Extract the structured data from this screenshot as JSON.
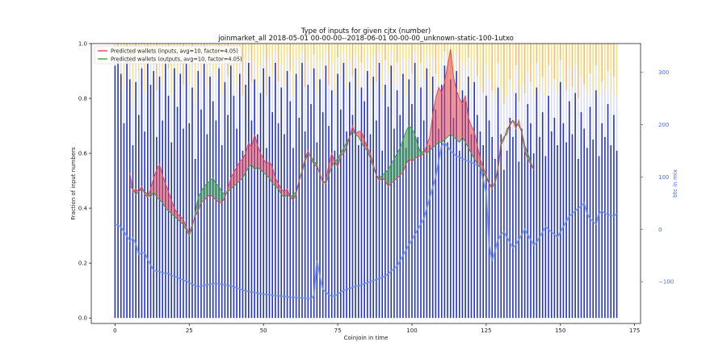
{
  "chart_data": {
    "type": "bar",
    "title_line1": "Type of inputs for given cjtx (number)",
    "title_line2": "joinmarket_all 2018-05-01 00-00-00--2018-06-01 00-00-00_unknown-static-100-1utxo",
    "xlabel": "Coinjoin in time",
    "ylabel": "Fraction of input numbers",
    "ylabel_right": "btc in mix",
    "xlim": [
      -8,
      177
    ],
    "ylim": [
      -0.02,
      1.0
    ],
    "ylim_right": [
      -180,
      355
    ],
    "x_ticks": [
      0,
      25,
      50,
      75,
      100,
      125,
      150,
      175
    ],
    "x_tick_labels": [
      "0",
      "25",
      "50",
      "75",
      "100",
      "125",
      "150",
      "175"
    ],
    "y_ticks": [
      0.0,
      0.2,
      0.4,
      0.6,
      0.8,
      1.0
    ],
    "y_tick_labels": [
      "0.0",
      "0.2",
      "0.4",
      "0.6",
      "0.8",
      "1.0"
    ],
    "y_ticks_right": [
      -100,
      0,
      100,
      200,
      300
    ],
    "y_tick_labels_right": [
      "−100",
      "0",
      "100",
      "200",
      "300"
    ],
    "legend_position": "top-left",
    "legend": [
      {
        "label": "Predicted wallets (inputs, avg=10, factor=4.05)",
        "color": "#e8474b"
      },
      {
        "label": "Predicted wallets (outputs, avg=10, factor=4.05)",
        "color": "#3d9f3d"
      }
    ],
    "colors": {
      "bar_blue": "#2233cc",
      "bar_light": "#d9dcf6",
      "bar_yellow": "#ffd23a",
      "bar_orange": "#f0a030",
      "inputs_line": "#e8474b",
      "outputs_line": "#3d9f3d",
      "fill_red": "#e8474b",
      "fill_green": "#3d9f3d",
      "btc_line": "#6f8ee8"
    },
    "bar_count": 170,
    "bars_blue_fraction": [
      0.92,
      0.94,
      0.89,
      0.71,
      0.95,
      0.87,
      0.63,
      0.86,
      0.74,
      0.91,
      0.68,
      0.93,
      0.85,
      0.9,
      0.66,
      0.88,
      0.72,
      0.94,
      0.81,
      0.64,
      0.91,
      0.77,
      0.89,
      0.69,
      0.93,
      0.71,
      0.84,
      0.58,
      0.9,
      0.76,
      0.93,
      0.67,
      0.88,
      0.79,
      0.72,
      0.91,
      0.63,
      0.86,
      0.74,
      0.92,
      0.81,
      0.69,
      0.89,
      0.61,
      0.85,
      0.93,
      0.72,
      0.87,
      0.67,
      0.82,
      0.91,
      0.62,
      0.88,
      0.75,
      0.93,
      0.71,
      0.84,
      0.67,
      0.9,
      0.79,
      0.62,
      0.89,
      0.73,
      0.93,
      0.68,
      0.85,
      0.78,
      0.91,
      0.64,
      0.87,
      0.75,
      0.92,
      0.7,
      0.83,
      0.61,
      0.89,
      0.76,
      0.93,
      0.68,
      0.86,
      0.74,
      0.91,
      0.63,
      0.84,
      0.79,
      0.9,
      0.67,
      0.88,
      0.72,
      0.93,
      0.61,
      0.85,
      0.77,
      0.92,
      0.69,
      0.83,
      0.74,
      0.89,
      0.62,
      0.87,
      0.78,
      0.93,
      0.66,
      0.84,
      0.72,
      0.91,
      0.63,
      0.88,
      0.76,
      0.69,
      0.85,
      0.92,
      0.64,
      0.87,
      0.73,
      0.9,
      0.61,
      0.83,
      0.79,
      0.88,
      0.67,
      0.86,
      0.74,
      0.68,
      0.63,
      0.81,
      0.72,
      0.66,
      0.58,
      0.84,
      0.67,
      0.54,
      0.61,
      0.73,
      0.66,
      0.82,
      0.57,
      0.69,
      0.62,
      0.78,
      0.71,
      0.6,
      0.84,
      0.66,
      0.75,
      0.59,
      0.81,
      0.68,
      0.73,
      0.63,
      0.86,
      0.71,
      0.64,
      0.79,
      0.67,
      0.82,
      0.58,
      0.75,
      0.69,
      0.62,
      0.77,
      0.65,
      0.83,
      0.59,
      0.71,
      0.66,
      0.78,
      0.63,
      0.74,
      0.61
    ],
    "bars_light_fraction": [
      0.04,
      0.03,
      0.06,
      0.12,
      0.02,
      0.07,
      0.15,
      0.08,
      0.13,
      0.05,
      0.14,
      0.04,
      0.09,
      0.05,
      0.17,
      0.07,
      0.13,
      0.03,
      0.1,
      0.18,
      0.05,
      0.12,
      0.06,
      0.16,
      0.04,
      0.14,
      0.09,
      0.21,
      0.06,
      0.13,
      0.04,
      0.17,
      0.07,
      0.11,
      0.15,
      0.05,
      0.19,
      0.08,
      0.14,
      0.04,
      0.1,
      0.16,
      0.06,
      0.2,
      0.09,
      0.04,
      0.14,
      0.07,
      0.18,
      0.1,
      0.05,
      0.19,
      0.07,
      0.13,
      0.04,
      0.15,
      0.09,
      0.17,
      0.06,
      0.11,
      0.19,
      0.06,
      0.14,
      0.04,
      0.16,
      0.09,
      0.12,
      0.05,
      0.18,
      0.07,
      0.13,
      0.05,
      0.15,
      0.1,
      0.2,
      0.06,
      0.13,
      0.04,
      0.16,
      0.08,
      0.14,
      0.05,
      0.19,
      0.09,
      0.11,
      0.06,
      0.17,
      0.07,
      0.14,
      0.04,
      0.2,
      0.09,
      0.12,
      0.05,
      0.16,
      0.1,
      0.14,
      0.06,
      0.19,
      0.07,
      0.11,
      0.04,
      0.17,
      0.09,
      0.15,
      0.05,
      0.19,
      0.07,
      0.13,
      0.16,
      0.09,
      0.05,
      0.18,
      0.08,
      0.14,
      0.06,
      0.2,
      0.1,
      0.12,
      0.07,
      0.17,
      0.08,
      0.14,
      0.16,
      0.19,
      0.11,
      0.15,
      0.17,
      0.22,
      0.09,
      0.16,
      0.24,
      0.2,
      0.14,
      0.17,
      0.1,
      0.22,
      0.16,
      0.2,
      0.12,
      0.15,
      0.21,
      0.09,
      0.17,
      0.13,
      0.22,
      0.11,
      0.16,
      0.14,
      0.19,
      0.08,
      0.15,
      0.19,
      0.12,
      0.17,
      0.1,
      0.22,
      0.13,
      0.16,
      0.2,
      0.12,
      0.18,
      0.09,
      0.22,
      0.15,
      0.17,
      0.12,
      0.19,
      0.14,
      0.2
    ],
    "bars_top_color": [
      "y",
      "o",
      "y",
      "y",
      "o",
      "y",
      "y",
      "o",
      "y",
      "y",
      "y",
      "o",
      "y",
      "y",
      "o",
      "y",
      "y",
      "y",
      "o",
      "y",
      "y",
      "y",
      "y",
      "o",
      "y",
      "y",
      "o",
      "y",
      "y",
      "y",
      "o",
      "y",
      "y",
      "y",
      "y",
      "o",
      "y",
      "y",
      "o",
      "y",
      "y",
      "y",
      "y",
      "o",
      "y",
      "y",
      "o",
      "y",
      "y",
      "y",
      "y",
      "o",
      "y",
      "y",
      "y",
      "o",
      "y",
      "y",
      "y",
      "o",
      "y",
      "y",
      "y",
      "y",
      "o",
      "y",
      "y",
      "o",
      "y",
      "y",
      "y",
      "y",
      "o",
      "y",
      "y",
      "o",
      "y",
      "y",
      "y",
      "y",
      "o",
      "y",
      "y",
      "o",
      "y",
      "y",
      "y",
      "y",
      "o",
      "y",
      "y",
      "o",
      "y",
      "y",
      "y",
      "o",
      "y",
      "y",
      "y",
      "y",
      "o",
      "y",
      "y",
      "o",
      "y",
      "y",
      "y",
      "y",
      "o",
      "y",
      "y",
      "o",
      "y",
      "y",
      "y",
      "y",
      "o",
      "y",
      "y",
      "o",
      "y",
      "y",
      "o",
      "y",
      "o",
      "y",
      "y",
      "o",
      "y",
      "o",
      "y",
      "o",
      "y",
      "o",
      "y",
      "o",
      "o",
      "y",
      "o",
      "y",
      "o",
      "y",
      "o",
      "y",
      "o",
      "y",
      "o",
      "y",
      "o",
      "y",
      "o",
      "y",
      "o",
      "y",
      "o",
      "y",
      "o",
      "y",
      "o",
      "y",
      "o",
      "y",
      "o",
      "y",
      "o",
      "y",
      "o",
      "y",
      "o",
      "y",
      "o",
      "y"
    ],
    "inputs_x_start": 5,
    "inputs_series": [
      0.53,
      0.46,
      0.47,
      0.46,
      0.48,
      0.45,
      0.44,
      0.47,
      0.51,
      0.54,
      0.56,
      0.52,
      0.49,
      0.46,
      0.43,
      0.4,
      0.38,
      0.37,
      0.36,
      0.33,
      0.31,
      0.34,
      0.37,
      0.39,
      0.42,
      0.43,
      0.44,
      0.45,
      0.44,
      0.43,
      0.42,
      0.42,
      0.44,
      0.47,
      0.51,
      0.53,
      0.55,
      0.57,
      0.58,
      0.6,
      0.64,
      0.62,
      0.67,
      0.63,
      0.6,
      0.58,
      0.56,
      0.57,
      0.55,
      0.51,
      0.49,
      0.47,
      0.46,
      0.47,
      0.44,
      0.43,
      0.45,
      0.5,
      0.54,
      0.58,
      0.61,
      0.58,
      0.56,
      0.55,
      0.53,
      0.49,
      0.5,
      0.56,
      0.6,
      0.57,
      0.55,
      0.59,
      0.6,
      0.62,
      0.66,
      0.7,
      0.67,
      0.68,
      0.68,
      0.65,
      0.62,
      0.6,
      0.56,
      0.52,
      0.5,
      0.51,
      0.5,
      0.48,
      0.49,
      0.5,
      0.51,
      0.52,
      0.53,
      0.56,
      0.58,
      0.57,
      0.58,
      0.59,
      0.59,
      0.6,
      0.63,
      0.66,
      0.74,
      0.8,
      0.84,
      0.82,
      0.86,
      0.92,
      0.98,
      0.88,
      0.83,
      0.8,
      0.78,
      0.81,
      0.73,
      0.7,
      0.68,
      0.63,
      0.58,
      0.55,
      0.52,
      0.49,
      0.47,
      0.5,
      0.55,
      0.64,
      0.66,
      0.67,
      0.71,
      0.72,
      0.69,
      0.72,
      0.67,
      0.61,
      0.58,
      0.56,
      0.54
    ],
    "outputs_series": [
      0.48,
      0.47,
      0.45,
      0.46,
      0.47,
      0.46,
      0.45,
      0.44,
      0.46,
      0.44,
      0.43,
      0.42,
      0.4,
      0.39,
      0.38,
      0.37,
      0.36,
      0.35,
      0.34,
      0.32,
      0.3,
      0.33,
      0.38,
      0.44,
      0.46,
      0.48,
      0.49,
      0.5,
      0.51,
      0.49,
      0.48,
      0.46,
      0.45,
      0.46,
      0.47,
      0.48,
      0.49,
      0.5,
      0.51,
      0.53,
      0.55,
      0.56,
      0.54,
      0.55,
      0.54,
      0.53,
      0.52,
      0.51,
      0.49,
      0.48,
      0.47,
      0.45,
      0.44,
      0.45,
      0.44,
      0.45,
      0.46,
      0.5,
      0.53,
      0.57,
      0.6,
      0.59,
      0.57,
      0.56,
      0.52,
      0.5,
      0.49,
      0.52,
      0.55,
      0.57,
      0.58,
      0.6,
      0.62,
      0.64,
      0.66,
      0.68,
      0.67,
      0.66,
      0.64,
      0.62,
      0.61,
      0.58,
      0.55,
      0.52,
      0.51,
      0.52,
      0.53,
      0.54,
      0.56,
      0.58,
      0.6,
      0.62,
      0.65,
      0.68,
      0.7,
      0.69,
      0.67,
      0.63,
      0.6,
      0.61,
      0.6,
      0.61,
      0.62,
      0.63,
      0.64,
      0.64,
      0.65,
      0.66,
      0.67,
      0.66,
      0.65,
      0.64,
      0.66,
      0.64,
      0.62,
      0.6,
      0.58,
      0.56,
      0.55,
      0.53,
      0.51,
      0.49,
      0.48,
      0.49,
      0.54,
      0.63,
      0.65,
      0.69,
      0.7,
      0.72,
      0.71,
      0.7,
      0.68,
      0.63,
      0.6,
      0.57,
      0.54
    ],
    "btc_series": [
      10,
      8,
      4,
      -4,
      -13,
      -22,
      -17,
      -27,
      -48,
      -45,
      -45,
      -58,
      -68,
      -78,
      -80,
      -81,
      -83,
      -84,
      -85,
      -88,
      -90,
      -92,
      -95,
      -97,
      -99,
      -102,
      -105,
      -108,
      -110,
      -109,
      -107,
      -106,
      -105,
      -104,
      -103,
      -104,
      -105,
      -106,
      -107,
      -108,
      -110,
      -112,
      -114,
      -116,
      -118,
      -119,
      -120,
      -121,
      -122,
      -123,
      -124,
      -125,
      -125,
      -126,
      -127,
      -127,
      -128,
      -128,
      -129,
      -130,
      -130,
      -130,
      -131,
      -131,
      -132,
      -132,
      -133,
      -126,
      -60,
      -90,
      -115,
      -120,
      -125,
      -128,
      -127,
      -124,
      -120,
      -117,
      -115,
      -113,
      -111,
      -109,
      -108,
      -106,
      -104,
      -102,
      -100,
      -98,
      -96,
      -94,
      -92,
      -89,
      -85,
      -80,
      -75,
      -70,
      -60,
      -50,
      -40,
      -30,
      -20,
      -10,
      0,
      10,
      20,
      40,
      60,
      80,
      100,
      130,
      160,
      165,
      158,
      150,
      145,
      140,
      138,
      135,
      132,
      130,
      128,
      125,
      122,
      120,
      95,
      70,
      -30,
      -60,
      -40,
      -20,
      -10,
      -5,
      -15,
      -25,
      -35,
      -30,
      -20,
      -10,
      0,
      -10,
      -20,
      -30,
      -25,
      -15,
      -5,
      5,
      0,
      -5,
      -10,
      -15,
      -5,
      5,
      15,
      25,
      30,
      35,
      40,
      45,
      50,
      30,
      20,
      15,
      10,
      30,
      35,
      30,
      28,
      27,
      25,
      30
    ]
  }
}
